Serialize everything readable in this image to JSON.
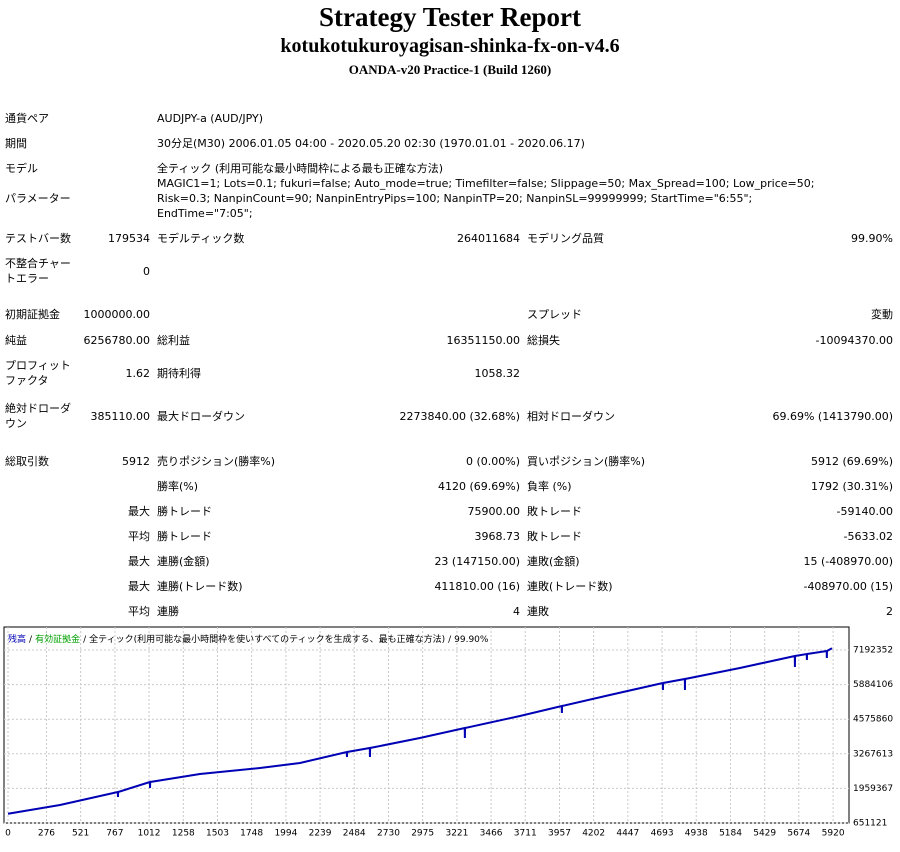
{
  "header": {
    "title": "Strategy Tester Report",
    "subtitle": "kotukotukuroyagisan-shinka-fx-on-v4.6",
    "server": "OANDA-v20 Practice-1 (Build 1260)"
  },
  "summary": [
    {
      "l1": "通貨ペア",
      "wide": "AUDJPY-a (AUD/JPY)"
    },
    {
      "l1": "期間",
      "wide": "30分足(M30) 2006.01.05 04:00 - 2020.05.20 02:30 (1970.01.01 - 2020.06.17)"
    },
    {
      "l1": "モデル",
      "wide": "全ティック (利用可能な最小時間枠による最も正確な方法)"
    },
    {
      "l1": "パラメーター",
      "wide": "MAGIC1=1; Lots=0.1; fukuri=false; Auto_mode=true; Timefilter=false; Slippage=50; Max_Spread=100; Low_price=50; Risk=0.3; NanpinCount=90; NanpinEntryPips=100; NanpinTP=20; NanpinSL=99999999; StartTime=\"6:55\"; EndTime=\"7:05\";"
    },
    {
      "l1": "テストバー数",
      "v1": "179534",
      "l2": "モデルティック数",
      "v2": "264011684",
      "l3": "モデリング品質",
      "v3": "99.90%"
    },
    {
      "l1": "不整合チャートエラー",
      "v1": "0"
    },
    {
      "l1": "初期証拠金",
      "v1": "1000000.00",
      "l3": "スプレッド",
      "v3": "変動"
    },
    {
      "l1": "純益",
      "v1": "6256780.00",
      "l2": "総利益",
      "v2": "16351150.00",
      "l3": "総損失",
      "v3": "-10094370.00"
    },
    {
      "l1": "プロフィットファクタ",
      "v1": "1.62",
      "l2": "期待利得",
      "v2": "1058.32"
    },
    {
      "l1": "絶対ドローダウン",
      "v1": "385110.00",
      "l2": "最大ドローダウン",
      "v2": "2273840.00 (32.68%)",
      "l3": "相対ドローダウン",
      "v3": "69.69% (1413790.00)"
    },
    {
      "l1": "総取引数",
      "v1": "5912",
      "l2": "売りポジション(勝率%)",
      "v2": "0 (0.00%)",
      "l3": "買いポジション(勝率%)",
      "v3": "5912 (69.69%)"
    },
    {
      "l2": "勝率(%)",
      "v2": "4120 (69.69%)",
      "l3": "負率 (%)",
      "v3": "1792 (30.31%)"
    },
    {
      "v1": "最大",
      "l2": "勝トレード",
      "v2": "75900.00",
      "l3": "敗トレード",
      "v3": "-59140.00"
    },
    {
      "v1": "平均",
      "l2": "勝トレード",
      "v2": "3968.73",
      "l3": "敗トレード",
      "v3": "-5633.02"
    },
    {
      "v1": "最大",
      "l2": "連勝(金額)",
      "v2": "23 (147150.00)",
      "l3": "連敗(金額)",
      "v3": "15 (-408970.00)"
    },
    {
      "v1": "最大",
      "l2": "連勝(トレード数)",
      "v2": "411810.00 (16)",
      "l3": "連敗(トレード数)",
      "v3": "-408970.00 (15)"
    },
    {
      "v1": "平均",
      "l2": "連勝",
      "v2": "4",
      "l3": "連敗",
      "v3": "2"
    }
  ],
  "chart_data": {
    "type": "line",
    "x": [
      0,
      373,
      788,
      789,
      790,
      1018,
      1019,
      1020,
      1377,
      1808,
      2095,
      2431,
      2432,
      2433,
      2596,
      2597,
      2598,
      2955,
      3277,
      3278,
      3279,
      3673,
      3973,
      3974,
      3975,
      4318,
      4698,
      4699,
      4700,
      4856,
      4857,
      4858,
      5251,
      5645,
      5646,
      5647,
      5731,
      5732,
      5733,
      5874,
      5875,
      5876,
      5912
    ],
    "series": [
      {
        "name": "残高",
        "color": "#0000b4",
        "values": [
          1000000,
          1332000,
          1823000,
          1634000,
          1823000,
          2201000,
          1974000,
          2201000,
          2504000,
          2731000,
          2920000,
          3336000,
          3147000,
          3336000,
          3487000,
          3147000,
          3487000,
          3865000,
          4243000,
          3865000,
          4243000,
          4697000,
          5075000,
          4810000,
          5075000,
          5491000,
          5944000,
          5680000,
          5944000,
          6096000,
          5680000,
          6096000,
          6512000,
          6965000,
          6549000,
          6965000,
          7041000,
          6814000,
          7041000,
          7154000,
          6890000,
          7154000,
          7256780
        ]
      }
    ],
    "equity_label": {
      "text": "有効証拠金",
      "color": "#00a000"
    },
    "model_label": "全ティック(利用可能な最小時間枠を使いすべてのティックを生成する、最も正確な方法)",
    "quality": "99.90%",
    "separator": "/",
    "xlim": [
      0,
      6034
    ],
    "ylim": [
      651121,
      8062000
    ],
    "xticks": [
      0,
      276,
      521,
      767,
      1012,
      1258,
      1503,
      1748,
      1994,
      2239,
      2484,
      2730,
      2975,
      3221,
      3466,
      3711,
      3957,
      4202,
      4447,
      4693,
      4938,
      5184,
      5429,
      5674,
      5920
    ],
    "yticks": [
      651121,
      1959367,
      3267613,
      4575860,
      5884106,
      7192352
    ],
    "grid": true
  }
}
